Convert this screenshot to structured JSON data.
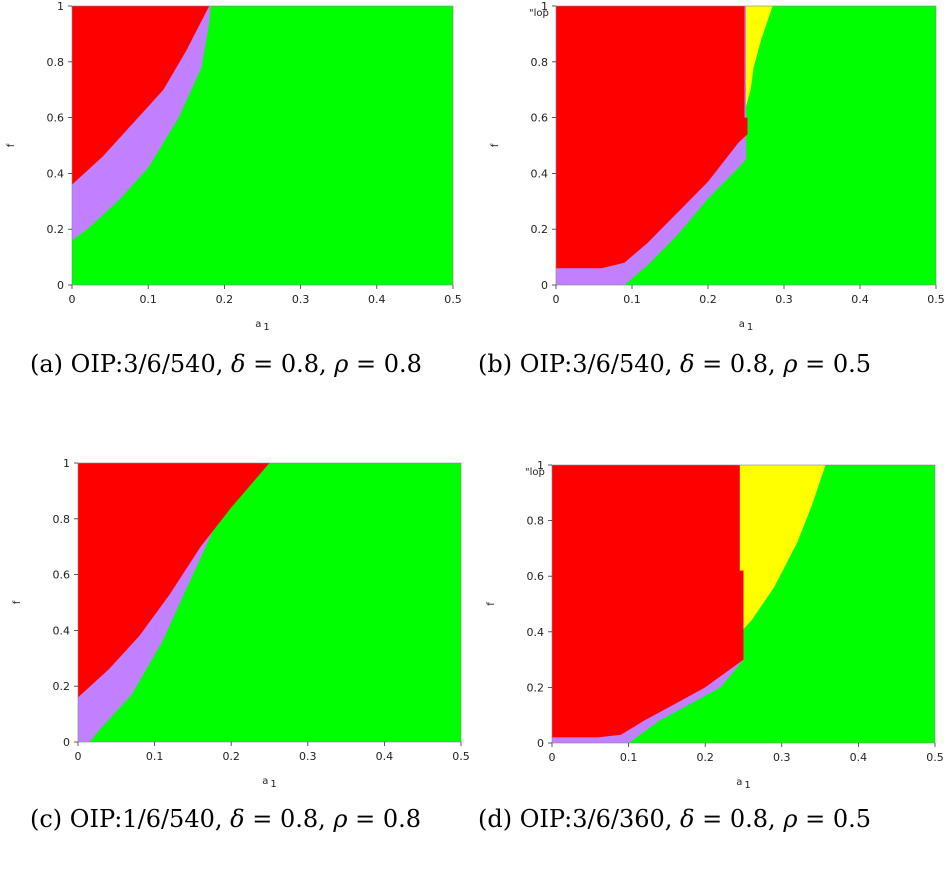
{
  "colors": {
    "red": "#ff0000",
    "purple": "#c080ff",
    "green": "#00ff00",
    "yellow": "#ffff00"
  },
  "chart_data": [
    {
      "id": "a",
      "type": "heatmap",
      "caption": {
        "prefix": "(a) OIP:3/6/540,",
        "delta_sym": "δ",
        "delta_val": "= 0.8,",
        "rho_sym": "ρ",
        "rho_val": "= 0.8"
      },
      "xlabel": "a",
      "xlabel_sub": "1",
      "ylabel": "f",
      "stray_label": "",
      "xlim": [
        0,
        0.5
      ],
      "ylim": [
        0,
        1
      ],
      "xticks": [
        "0",
        "0.1",
        "0.2",
        "0.3",
        "0.4",
        "0.5"
      ],
      "yticks": [
        "0",
        "0.2",
        "0.4",
        "0.6",
        "0.8",
        "1"
      ],
      "regions": [
        {
          "color": "green",
          "polygon": [
            [
              0,
              0
            ],
            [
              0.5,
              0
            ],
            [
              0.5,
              1
            ],
            [
              0,
              1
            ]
          ]
        },
        {
          "color": "purple",
          "polygon": [
            [
              0,
              1
            ],
            [
              0,
              0.16
            ],
            [
              0.02,
              0.2
            ],
            [
              0.06,
              0.3
            ],
            [
              0.1,
              0.42
            ],
            [
              0.14,
              0.6
            ],
            [
              0.17,
              0.78
            ],
            [
              0.18,
              0.94
            ],
            [
              0.182,
              1
            ]
          ]
        },
        {
          "color": "red",
          "polygon": [
            [
              0,
              1
            ],
            [
              0,
              0.36
            ],
            [
              0.04,
              0.46
            ],
            [
              0.08,
              0.58
            ],
            [
              0.12,
              0.7
            ],
            [
              0.15,
              0.84
            ],
            [
              0.18,
              1
            ]
          ]
        }
      ]
    },
    {
      "id": "b",
      "type": "heatmap",
      "caption": {
        "prefix": "(b) OIP:3/6/540,",
        "delta_sym": "δ",
        "delta_val": "= 0.8,",
        "rho_sym": "ρ",
        "rho_val": "= 0.5"
      },
      "xlabel": "a",
      "xlabel_sub": "1",
      "ylabel": "f",
      "stray_label": "\"lop",
      "xlim": [
        0,
        0.5
      ],
      "ylim": [
        0,
        1
      ],
      "xticks": [
        "0",
        "0.1",
        "0.2",
        "0.3",
        "0.4",
        "0.5"
      ],
      "yticks": [
        "0",
        "0.2",
        "0.4",
        "0.6",
        "0.8",
        "1"
      ],
      "regions": [
        {
          "color": "green",
          "polygon": [
            [
              0,
              0
            ],
            [
              0.5,
              0
            ],
            [
              0.5,
              1
            ],
            [
              0,
              1
            ]
          ]
        },
        {
          "color": "yellow",
          "polygon": [
            [
              0.248,
              1
            ],
            [
              0.285,
              1
            ],
            [
              0.27,
              0.88
            ],
            [
              0.26,
              0.78
            ],
            [
              0.256,
              0.7
            ],
            [
              0.25,
              0.64
            ],
            [
              0.248,
              0.6
            ]
          ]
        },
        {
          "color": "purple",
          "polygon": [
            [
              0,
              1
            ],
            [
              0,
              0
            ],
            [
              0.09,
              0
            ],
            [
              0.12,
              0.07
            ],
            [
              0.16,
              0.18
            ],
            [
              0.2,
              0.31
            ],
            [
              0.24,
              0.42
            ],
            [
              0.25,
              0.45
            ],
            [
              0.25,
              1
            ]
          ]
        },
        {
          "color": "red",
          "polygon": [
            [
              0,
              1
            ],
            [
              0,
              0.06
            ],
            [
              0.03,
              0.06
            ],
            [
              0.06,
              0.06
            ],
            [
              0.09,
              0.08
            ],
            [
              0.12,
              0.15
            ],
            [
              0.16,
              0.26
            ],
            [
              0.2,
              0.37
            ],
            [
              0.24,
              0.51
            ],
            [
              0.252,
              0.54
            ],
            [
              0.252,
              0.6
            ],
            [
              0.248,
              0.6
            ],
            [
              0.248,
              1
            ]
          ]
        }
      ]
    },
    {
      "id": "c",
      "type": "heatmap",
      "caption": {
        "prefix": "(c) OIP:1/6/540,",
        "delta_sym": "δ",
        "delta_val": "= 0.8,",
        "rho_sym": "ρ",
        "rho_val": "= 0.8"
      },
      "xlabel": "a",
      "xlabel_sub": "1",
      "ylabel": "f",
      "stray_label": "",
      "xlim": [
        0,
        0.5
      ],
      "ylim": [
        0,
        1
      ],
      "xticks": [
        "0",
        "0.1",
        "0.2",
        "0.3",
        "0.4",
        "0.5"
      ],
      "yticks": [
        "0",
        "0.2",
        "0.4",
        "0.6",
        "0.8",
        "1"
      ],
      "regions": [
        {
          "color": "green",
          "polygon": [
            [
              0,
              0
            ],
            [
              0.5,
              0
            ],
            [
              0.5,
              1
            ],
            [
              0,
              1
            ]
          ]
        },
        {
          "color": "purple",
          "polygon": [
            [
              0,
              1
            ],
            [
              0,
              0
            ],
            [
              0.015,
              0
            ],
            [
              0.03,
              0.05
            ],
            [
              0.07,
              0.17
            ],
            [
              0.11,
              0.36
            ],
            [
              0.15,
              0.6
            ],
            [
              0.18,
              0.78
            ],
            [
              0.25,
              1
            ]
          ]
        },
        {
          "color": "red",
          "polygon": [
            [
              0,
              1
            ],
            [
              0,
              0.16
            ],
            [
              0.04,
              0.26
            ],
            [
              0.08,
              0.38
            ],
            [
              0.12,
              0.53
            ],
            [
              0.16,
              0.7
            ],
            [
              0.2,
              0.84
            ],
            [
              0.25,
              1
            ]
          ]
        }
      ]
    },
    {
      "id": "d",
      "type": "heatmap",
      "caption": {
        "prefix": "(d) OIP:3/6/360,",
        "delta_sym": "δ",
        "delta_val": "= 0.8,",
        "rho_sym": "ρ",
        "rho_val": "= 0.5"
      },
      "xlabel": "a",
      "xlabel_sub": "1",
      "ylabel": "f",
      "stray_label": "\"lop",
      "xlim": [
        0,
        0.5
      ],
      "ylim": [
        0,
        1
      ],
      "xticks": [
        "0",
        "0.1",
        "0.2",
        "0.3",
        "0.4",
        "0.5"
      ],
      "yticks": [
        "0",
        "0.2",
        "0.4",
        "0.6",
        "0.8",
        "1"
      ],
      "regions": [
        {
          "color": "green",
          "polygon": [
            [
              0,
              0
            ],
            [
              0.5,
              0
            ],
            [
              0.5,
              1
            ],
            [
              0,
              1
            ]
          ]
        },
        {
          "color": "yellow",
          "polygon": [
            [
              0.245,
              1
            ],
            [
              0.357,
              1
            ],
            [
              0.34,
              0.86
            ],
            [
              0.32,
              0.72
            ],
            [
              0.29,
              0.56
            ],
            [
              0.26,
              0.44
            ],
            [
              0.25,
              0.41
            ],
            [
              0.25,
              0.6
            ],
            [
              0.245,
              0.62
            ]
          ]
        },
        {
          "color": "purple",
          "polygon": [
            [
              0,
              1
            ],
            [
              0,
              0
            ],
            [
              0.1,
              0
            ],
            [
              0.14,
              0.08
            ],
            [
              0.18,
              0.14
            ],
            [
              0.22,
              0.2
            ],
            [
              0.25,
              0.3
            ],
            [
              0.25,
              0.62
            ],
            [
              0.245,
              0.62
            ],
            [
              0.245,
              1
            ]
          ]
        },
        {
          "color": "red",
          "polygon": [
            [
              0,
              1
            ],
            [
              0,
              0.02
            ],
            [
              0.06,
              0.02
            ],
            [
              0.09,
              0.03
            ],
            [
              0.12,
              0.08
            ],
            [
              0.16,
              0.14
            ],
            [
              0.2,
              0.2
            ],
            [
              0.22,
              0.24
            ],
            [
              0.25,
              0.3
            ],
            [
              0.25,
              0.62
            ],
            [
              0.245,
              0.62
            ],
            [
              0.245,
              1
            ]
          ]
        }
      ]
    }
  ]
}
